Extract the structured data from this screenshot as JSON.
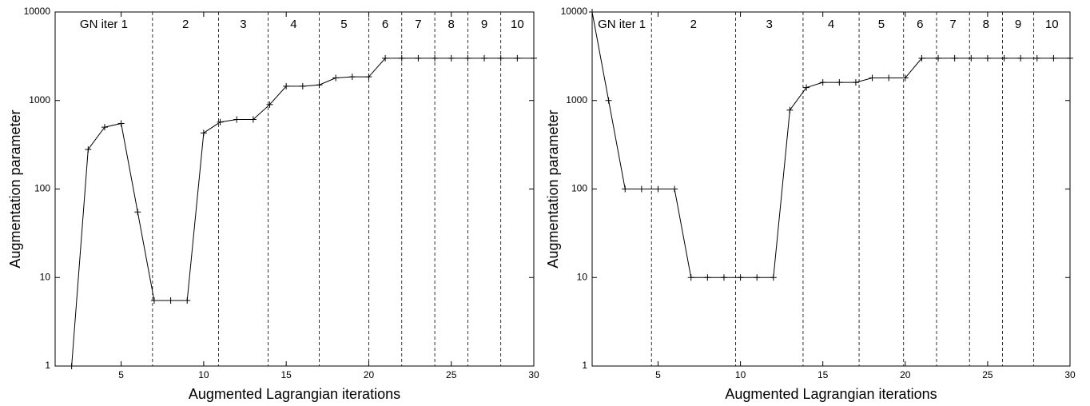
{
  "chart_data": [
    {
      "type": "line",
      "xlabel": "Augmented Lagrangian iterations",
      "ylabel": "Augmentation parameter",
      "x": [
        2,
        3,
        4,
        5,
        6,
        7,
        8,
        9,
        10,
        11,
        12,
        13,
        14,
        15,
        16,
        17,
        18,
        19,
        20,
        21,
        22,
        23,
        24,
        25,
        26,
        27,
        28,
        29,
        30
      ],
      "series": [
        {
          "color": "#000000",
          "values": [
            1,
            280,
            500,
            550,
            55,
            5.5,
            5.5,
            5.5,
            430,
            570,
            610,
            610,
            900,
            1450,
            1450,
            1500,
            1800,
            1850,
            1850,
            3000,
            3000,
            3000,
            3000,
            3000,
            3000,
            3000,
            3000,
            3000,
            3000
          ]
        }
      ],
      "xlim": [
        1,
        30
      ],
      "ylim": [
        1,
        10000
      ],
      "log_y": true,
      "xticks": [
        5,
        10,
        15,
        20,
        25,
        30
      ],
      "yticks": [
        1,
        10,
        100,
        1000,
        10000
      ],
      "boundaries": [
        6.9,
        10.9,
        13.9,
        17,
        20,
        22,
        24,
        26,
        28
      ],
      "boundary_labels": [
        "GN iter 1",
        "2",
        "3",
        "4",
        "5",
        "6",
        "7",
        "8",
        "9",
        "10"
      ]
    },
    {
      "type": "line",
      "xlabel": "Augmented Lagrangian iterations",
      "ylabel": "Augmentation parameter",
      "x": [
        1,
        2,
        3,
        4,
        5,
        6,
        7,
        8,
        9,
        10,
        11,
        12,
        13,
        14,
        15,
        16,
        17,
        18,
        19,
        20,
        21,
        22,
        23,
        24,
        25,
        26,
        27,
        28,
        29,
        30
      ],
      "series": [
        {
          "color": "#000000",
          "values": [
            10000,
            1000,
            100,
            100,
            100,
            100,
            10,
            10,
            10,
            10,
            10,
            10,
            780,
            1400,
            1600,
            1600,
            1600,
            1800,
            1800,
            1800,
            3000,
            3000,
            3000,
            3000,
            3000,
            3000,
            3000,
            3000,
            3000,
            3000
          ]
        }
      ],
      "xlim": [
        1,
        30
      ],
      "ylim": [
        1,
        10000
      ],
      "log_y": true,
      "xticks": [
        5,
        10,
        15,
        20,
        25,
        30
      ],
      "yticks": [
        1,
        10,
        100,
        1000,
        10000
      ],
      "boundaries": [
        4.6,
        9.7,
        13.8,
        17.2,
        19.9,
        21.9,
        23.9,
        25.9,
        27.8
      ],
      "boundary_labels": [
        "GN iter 1",
        "2",
        "3",
        "4",
        "5",
        "6",
        "7",
        "8",
        "9",
        "10"
      ]
    }
  ]
}
